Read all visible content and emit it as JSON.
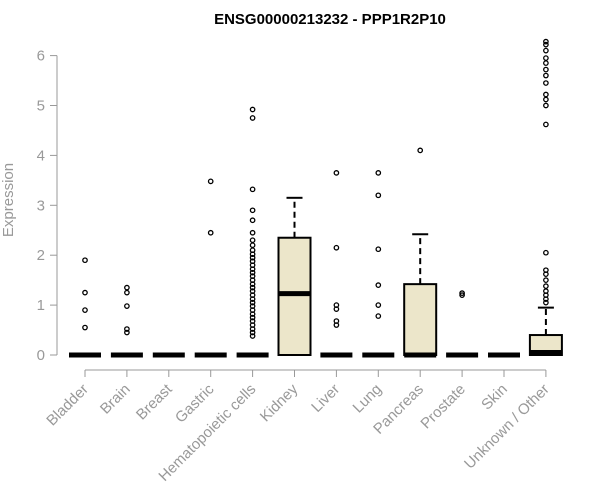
{
  "chart_data": {
    "type": "boxplot",
    "title": "ENSG00000213232 - PPP1R2P10",
    "xlabel": "",
    "ylabel": "Expression",
    "ylim": [
      0,
      6.3
    ],
    "yticks": [
      "0",
      "1",
      "2",
      "3",
      "4",
      "5",
      "6"
    ],
    "grid": false,
    "legend": "none",
    "box_fill": "#ece6ca",
    "categories": [
      "Bladder",
      "Brain",
      "Breast",
      "Gastric",
      "Hematopoietic cells",
      "Kidney",
      "Liver",
      "Lung",
      "Pancreas",
      "Prostate",
      "Skin",
      "Unknown / Other"
    ],
    "boxes": [
      {
        "category": "Bladder",
        "q1": 0,
        "median": 0,
        "q3": 0,
        "whisker_low": 0,
        "whisker_high": 0,
        "outliers": [
          0.55,
          0.9,
          1.25,
          1.9
        ]
      },
      {
        "category": "Brain",
        "q1": 0,
        "median": 0,
        "q3": 0,
        "whisker_low": 0,
        "whisker_high": 0,
        "outliers": [
          0.45,
          0.52,
          0.98,
          1.25,
          1.35
        ]
      },
      {
        "category": "Breast",
        "q1": 0,
        "median": 0,
        "q3": 0,
        "whisker_low": 0,
        "whisker_high": 0,
        "outliers": []
      },
      {
        "category": "Gastric",
        "q1": 0,
        "median": 0,
        "q3": 0,
        "whisker_low": 0,
        "whisker_high": 0,
        "outliers": [
          2.45,
          3.48
        ]
      },
      {
        "category": "Hematopoietic cells",
        "q1": 0,
        "median": 0,
        "q3": 0,
        "whisker_low": 0,
        "whisker_high": 0,
        "outliers": [
          0.38,
          0.45,
          0.52,
          0.6,
          0.68,
          0.75,
          0.82,
          0.9,
          0.98,
          1.05,
          1.12,
          1.2,
          1.28,
          1.35,
          1.42,
          1.5,
          1.58,
          1.65,
          1.72,
          1.8,
          1.88,
          1.95,
          2.02,
          2.1,
          2.2,
          2.3,
          2.45,
          2.7,
          2.9,
          3.32,
          4.75,
          4.92
        ]
      },
      {
        "category": "Kidney",
        "q1": 0,
        "median": 1.23,
        "q3": 2.35,
        "whisker_low": 0,
        "whisker_high": 3.15,
        "outliers": []
      },
      {
        "category": "Liver",
        "q1": 0,
        "median": 0,
        "q3": 0,
        "whisker_low": 0,
        "whisker_high": 0,
        "outliers": [
          0.6,
          0.68,
          0.92,
          1.0,
          2.15,
          3.65
        ]
      },
      {
        "category": "Lung",
        "q1": 0,
        "median": 0,
        "q3": 0,
        "whisker_low": 0,
        "whisker_high": 0,
        "outliers": [
          0.78,
          1.0,
          1.4,
          2.12,
          3.2,
          3.65
        ]
      },
      {
        "category": "Pancreas",
        "q1": 0,
        "median": 0,
        "q3": 1.42,
        "whisker_low": 0,
        "whisker_high": 2.42,
        "outliers": [
          4.1
        ]
      },
      {
        "category": "Prostate",
        "q1": 0,
        "median": 0,
        "q3": 0,
        "whisker_low": 0,
        "whisker_high": 0,
        "outliers": [
          1.2,
          1.24
        ]
      },
      {
        "category": "Skin",
        "q1": 0,
        "median": 0,
        "q3": 0,
        "whisker_low": 0,
        "whisker_high": 0,
        "outliers": []
      },
      {
        "category": "Unknown / Other",
        "q1": 0,
        "median": 0.05,
        "q3": 0.4,
        "whisker_low": 0,
        "whisker_high": 0.95,
        "outliers": [
          1.05,
          1.12,
          1.2,
          1.28,
          1.38,
          1.5,
          1.62,
          1.7,
          2.05,
          4.62,
          5.0,
          5.12,
          5.22,
          5.45,
          5.6,
          5.72,
          5.85,
          5.95,
          6.1,
          6.22,
          6.28
        ]
      }
    ]
  }
}
